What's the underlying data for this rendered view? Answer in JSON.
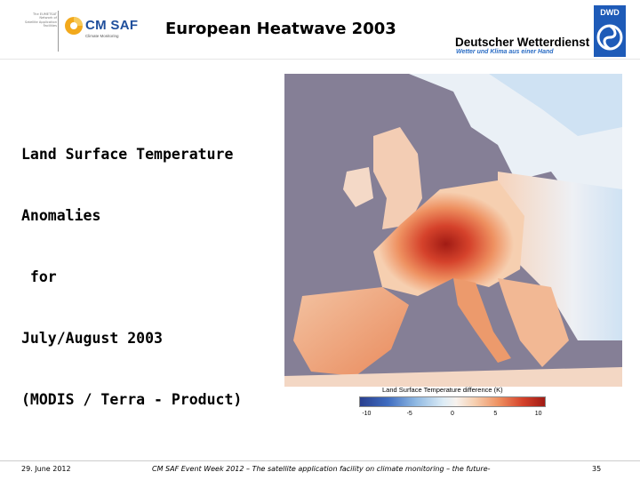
{
  "header": {
    "title": "European Heatwave 2003",
    "left_logo": {
      "org_lines": [
        "The EUMETSAT",
        "Network of",
        "Satellite Application",
        "Facilities"
      ],
      "name": "CM SAF",
      "subtitle": "Climate Monitoring",
      "mark_color": "#f2a91c",
      "name_color": "#1f4f9c"
    },
    "right_logo": {
      "name": "Deutscher Wetterdienst",
      "tagline": "Wetter und Klima aus einer Hand",
      "emblem_text": "DWD",
      "tagline_color": "#2a6cc4",
      "emblem_color": "#1e5bb8"
    }
  },
  "body": {
    "lines": [
      "Land Surface Temperature",
      "Anomalies",
      " for",
      "July/August 2003",
      "(MODIS / Terra - Product)"
    ]
  },
  "figure": {
    "image_subject": "Map of Europe colored by land surface temperature anomaly, July/August 2003",
    "legend": {
      "title": "Land Surface Temperature difference (K)",
      "ticks": [
        "-10",
        "-5",
        "0",
        "5",
        "10"
      ],
      "range": [
        -10,
        10
      ]
    },
    "colors": {
      "sea": "#857f96",
      "cold": "#2a3f8f",
      "neutral": "#f7f2ee",
      "hot": "#a11b14"
    }
  },
  "footer": {
    "date": "29. June 2012",
    "event": "CM SAF Event Week 2012 – The satellite application facility on climate monitoring – the future-",
    "page": "35"
  }
}
